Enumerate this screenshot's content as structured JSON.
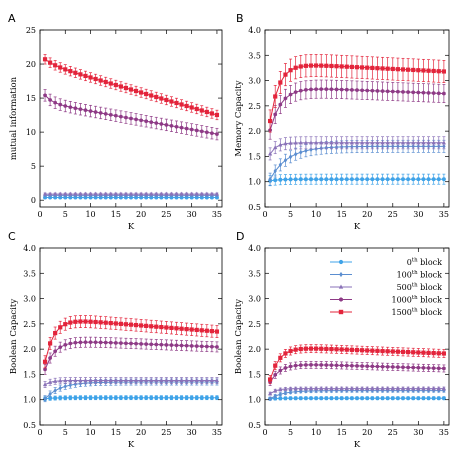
{
  "colors": {
    "b0": "#3fa3e8",
    "b100": "#5b8ed0",
    "b500": "#8a72b8",
    "b1000": "#8e3a86",
    "b1500": "#e3243b"
  },
  "legend": {
    "entries": [
      {
        "key": "b0",
        "marker": "circle",
        "num": "0",
        "sup": "th",
        "rest": " block"
      },
      {
        "key": "b100",
        "marker": "diamond",
        "num": "100",
        "sup": "th",
        "rest": " block"
      },
      {
        "key": "b500",
        "marker": "triangle",
        "num": "500",
        "sup": "th",
        "rest": " block"
      },
      {
        "key": "b1000",
        "marker": "hexagon",
        "num": "1000",
        "sup": "th",
        "rest": " block"
      },
      {
        "key": "b1500",
        "marker": "square",
        "num": "1500",
        "sup": "th",
        "rest": " block"
      }
    ]
  },
  "chart_data": [
    {
      "panel": "A",
      "type": "line",
      "xlabel": "K",
      "ylabel": "mutual information",
      "xlim": [
        0,
        36
      ],
      "ylim": [
        -1,
        25
      ],
      "xticks": [
        "0",
        "5",
        "10",
        "15",
        "20",
        "25",
        "30",
        "35"
      ],
      "yticks": [
        "0",
        "5",
        "10",
        "15",
        "20",
        "25"
      ],
      "x_range": [
        1,
        35
      ],
      "series": [
        {
          "key": "b0",
          "start": 0.4,
          "plateau": 0.4,
          "rise": 0.1,
          "decline": 0.0,
          "err": 0.15
        },
        {
          "key": "b100",
          "start": 0.7,
          "plateau": 0.7,
          "rise": 0.1,
          "decline": 0.0,
          "err": 0.15
        },
        {
          "key": "b500",
          "start": 0.9,
          "plateau": 0.9,
          "rise": 0.1,
          "decline": 0.0,
          "err": 0.15
        },
        {
          "key": "b1000",
          "start": 15.4,
          "plateau": 14.3,
          "rise": 1.5,
          "decline": -0.135,
          "err": 0.85
        },
        {
          "key": "b1500",
          "start": 20.7,
          "plateau": 20.0,
          "rise": 2.0,
          "decline": -0.22,
          "err": 0.7
        }
      ]
    },
    {
      "panel": "B",
      "type": "line",
      "xlabel": "K",
      "ylabel": "Memory Capacity",
      "xlim": [
        0,
        36
      ],
      "ylim": [
        0.5,
        4.0
      ],
      "xticks": [
        "0",
        "5",
        "10",
        "15",
        "20",
        "25",
        "30",
        "35"
      ],
      "yticks": [
        "0.5",
        "1.0",
        "1.5",
        "2.0",
        "2.5",
        "3.0",
        "3.5",
        "4.0"
      ],
      "x_range": [
        1,
        35
      ],
      "series": [
        {
          "key": "b0",
          "start": 1.02,
          "plateau": 1.05,
          "rise": 2.0,
          "decline": 0.0,
          "err": 0.1
        },
        {
          "key": "b100",
          "start": 1.05,
          "plateau": 1.7,
          "rise": 3.5,
          "decline": 0.0,
          "err": 0.12
        },
        {
          "key": "b500",
          "start": 1.55,
          "plateau": 1.77,
          "rise": 1.2,
          "decline": 0.0,
          "err": 0.12
        },
        {
          "key": "b1000",
          "start": 2.02,
          "plateau": 2.88,
          "rise": 2.2,
          "decline": -0.004,
          "err": 0.18
        },
        {
          "key": "b1500",
          "start": 2.2,
          "plateau": 3.35,
          "rise": 1.8,
          "decline": -0.005,
          "err": 0.22
        }
      ]
    },
    {
      "panel": "C",
      "type": "line",
      "xlabel": "K",
      "ylabel": "Boolean Capacity",
      "xlim": [
        0,
        36
      ],
      "ylim": [
        0.5,
        4.0
      ],
      "xticks": [
        "0",
        "5",
        "10",
        "15",
        "20",
        "25",
        "30",
        "35"
      ],
      "yticks": [
        "0.5",
        "1.0",
        "1.5",
        "2.0",
        "2.5",
        "3.0",
        "3.5",
        "4.0"
      ],
      "x_range": [
        1,
        35
      ],
      "series": [
        {
          "key": "b0",
          "start": 1.02,
          "plateau": 1.04,
          "rise": 2.0,
          "decline": 0.0,
          "err": 0.04
        },
        {
          "key": "b100",
          "start": 1.02,
          "plateau": 1.35,
          "rise": 3.0,
          "decline": 0.0,
          "err": 0.06
        },
        {
          "key": "b500",
          "start": 1.3,
          "plateau": 1.38,
          "rise": 1.2,
          "decline": 0.0,
          "err": 0.06
        },
        {
          "key": "b1000",
          "start": 1.6,
          "plateau": 2.18,
          "rise": 2.0,
          "decline": -0.004,
          "err": 0.1
        },
        {
          "key": "b1500",
          "start": 1.75,
          "plateau": 2.62,
          "rise": 1.8,
          "decline": -0.008,
          "err": 0.12
        }
      ]
    },
    {
      "panel": "D",
      "type": "line",
      "xlabel": "K",
      "ylabel": "Boolean Capacity",
      "xlim": [
        0,
        36
      ],
      "ylim": [
        0.5,
        4.0
      ],
      "xticks": [
        "0",
        "5",
        "10",
        "15",
        "20",
        "25",
        "30",
        "35"
      ],
      "yticks": [
        "0.5",
        "1.0",
        "1.5",
        "2.0",
        "2.5",
        "3.0",
        "3.5",
        "4.0"
      ],
      "x_range": [
        1,
        35
      ],
      "series": [
        {
          "key": "b0",
          "start": 1.02,
          "plateau": 1.03,
          "rise": 2.0,
          "decline": 0.0,
          "err": 0.03
        },
        {
          "key": "b100",
          "start": 1.02,
          "plateau": 1.18,
          "rise": 2.5,
          "decline": 0.0,
          "err": 0.03
        },
        {
          "key": "b500",
          "start": 1.12,
          "plateau": 1.22,
          "rise": 1.2,
          "decline": 0.0,
          "err": 0.03
        },
        {
          "key": "b1000",
          "start": 1.35,
          "plateau": 1.72,
          "rise": 2.0,
          "decline": -0.003,
          "err": 0.07
        },
        {
          "key": "b1500",
          "start": 1.4,
          "plateau": 2.05,
          "rise": 1.8,
          "decline": -0.004,
          "err": 0.08
        }
      ]
    }
  ]
}
